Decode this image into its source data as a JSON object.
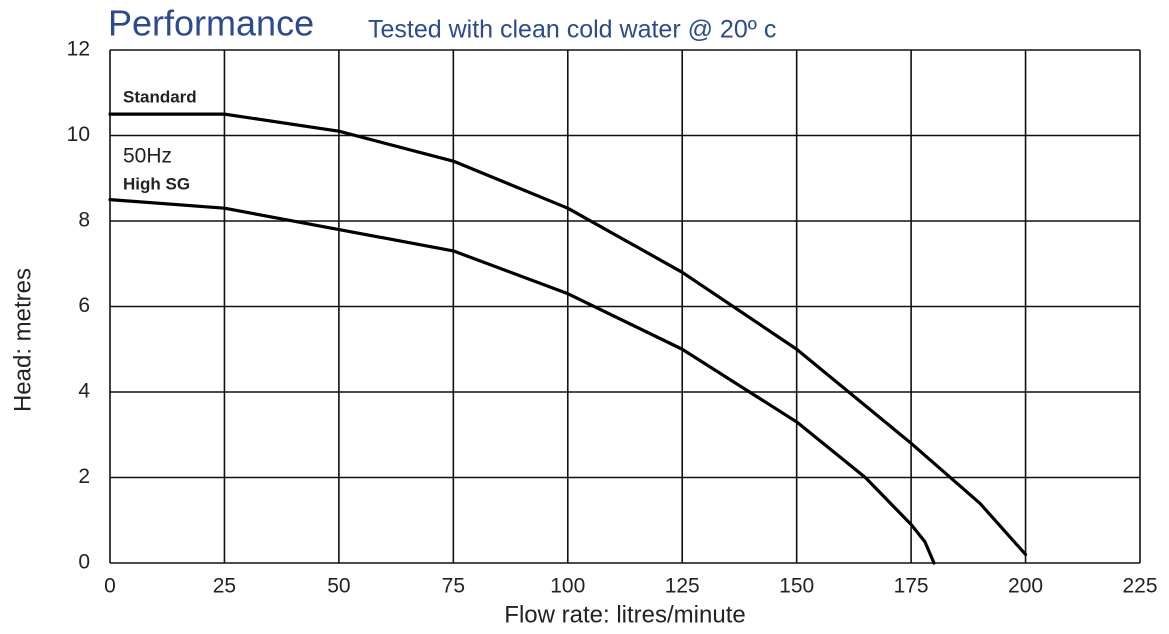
{
  "chart_data": {
    "type": "line",
    "title": "Performance",
    "subtitle": "Tested with clean cold water @ 20º c",
    "x_label": "Flow rate: litres/minute",
    "y_label": "Head: metres",
    "annotations": [
      "Standard",
      "50Hz",
      "High SG"
    ],
    "series": [
      {
        "name": "Standard",
        "color": "#000000",
        "x": [
          0,
          25,
          50,
          75,
          100,
          125,
          150,
          175,
          190,
          200
        ],
        "values": [
          10.5,
          10.5,
          10.1,
          9.4,
          8.3,
          6.8,
          5.0,
          2.8,
          1.4,
          0.2
        ]
      },
      {
        "name": "High SG",
        "color": "#000000",
        "x": [
          0,
          25,
          50,
          75,
          100,
          125,
          150,
          165,
          175,
          178,
          180
        ],
        "values": [
          8.5,
          8.3,
          7.8,
          7.3,
          6.3,
          5.0,
          3.3,
          2.0,
          0.9,
          0.5,
          0
        ]
      }
    ],
    "xlim": [
      0,
      225
    ],
    "xticks": [
      0,
      25,
      50,
      75,
      100,
      125,
      150,
      175,
      200,
      225
    ],
    "ylim": [
      0,
      12
    ],
    "yticks": [
      0,
      2,
      4,
      6,
      8,
      10,
      12
    ],
    "grid": true
  }
}
